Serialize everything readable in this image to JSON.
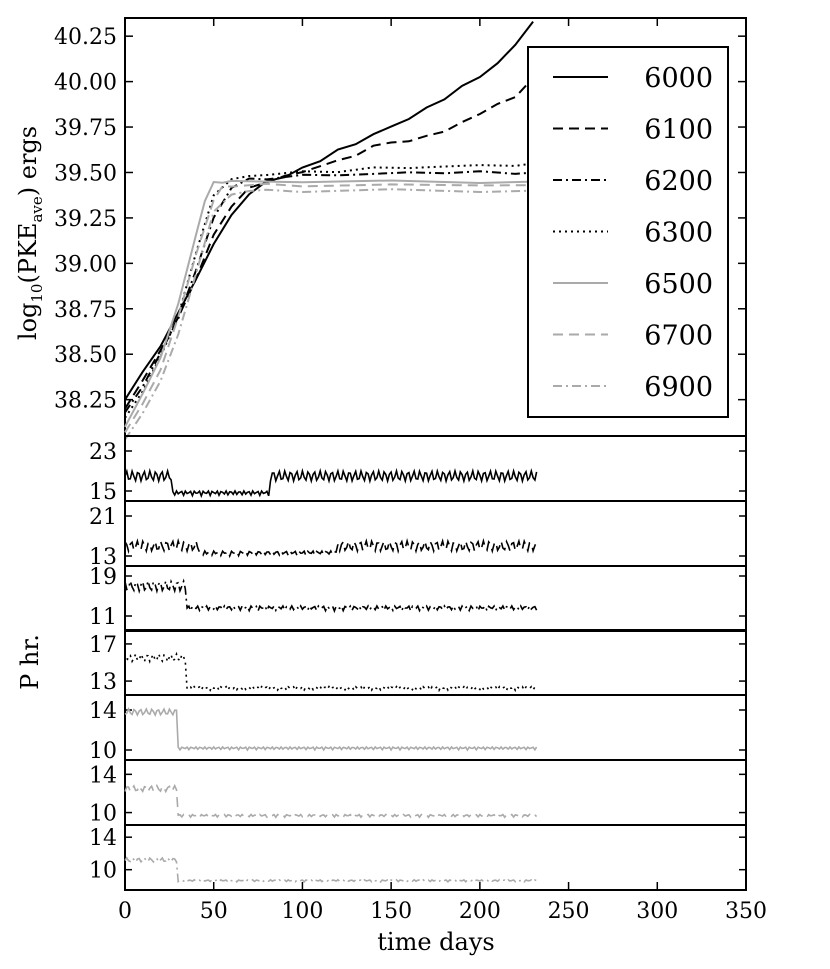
{
  "chart_data": {
    "type": "line",
    "xlabel": "time days",
    "xlim": [
      0,
      350
    ],
    "xticks": [
      "0",
      "50",
      "100",
      "150",
      "200",
      "250",
      "300",
      "350"
    ],
    "top": {
      "ylabel": "log10(PKE_ave) ergs",
      "ylabel_parts": {
        "pre": "log",
        "sub1": "10",
        "mid": "(PKE",
        "sub2": "ave",
        "post": ") ergs"
      },
      "ylim": [
        38.05,
        40.35
      ],
      "yticks": [
        "38.25",
        "38.50",
        "38.75",
        "39.00",
        "39.25",
        "39.50",
        "39.75",
        "40.00",
        "40.25"
      ],
      "legend_position": "upper-right",
      "series": [
        {
          "name": "6000",
          "color": "#000000",
          "dash": "solid",
          "x": [
            0,
            10,
            20,
            30,
            40,
            50,
            60,
            70,
            80,
            90,
            100,
            110,
            120,
            130,
            140,
            150,
            160,
            170,
            180,
            190,
            200,
            210,
            220,
            230
          ],
          "y": [
            38.25,
            38.4,
            38.55,
            38.72,
            38.92,
            39.1,
            39.27,
            39.38,
            39.45,
            39.48,
            39.52,
            39.57,
            39.62,
            39.66,
            39.71,
            39.75,
            39.8,
            39.85,
            39.91,
            39.97,
            40.03,
            40.1,
            40.2,
            40.33
          ]
        },
        {
          "name": "6100",
          "color": "#000000",
          "dash": "dashed",
          "x": [
            0,
            10,
            20,
            30,
            40,
            50,
            60,
            70,
            80,
            90,
            100,
            110,
            120,
            130,
            140,
            150,
            160,
            170,
            180,
            190,
            200,
            210,
            220,
            230
          ],
          "y": [
            38.2,
            38.36,
            38.52,
            38.7,
            38.92,
            39.15,
            39.32,
            39.41,
            39.45,
            39.48,
            39.5,
            39.54,
            39.56,
            39.6,
            39.64,
            39.67,
            39.67,
            39.7,
            39.73,
            39.77,
            39.83,
            39.87,
            39.92,
            40.02
          ]
        },
        {
          "name": "6200",
          "color": "#000000",
          "dash": "dashdot",
          "x": [
            0,
            10,
            20,
            30,
            40,
            50,
            60,
            70,
            80,
            100,
            120,
            140,
            160,
            180,
            200,
            220,
            230
          ],
          "y": [
            38.18,
            38.33,
            38.5,
            38.7,
            38.96,
            39.25,
            39.42,
            39.46,
            39.47,
            39.48,
            39.49,
            39.49,
            39.5,
            39.5,
            39.5,
            39.5,
            39.5
          ]
        },
        {
          "name": "6300",
          "color": "#000000",
          "dash": "dotted",
          "x": [
            0,
            10,
            20,
            30,
            40,
            50,
            60,
            70,
            80,
            100,
            120,
            140,
            160,
            180,
            200,
            220,
            230
          ],
          "y": [
            38.15,
            38.3,
            38.48,
            38.72,
            39.05,
            39.38,
            39.46,
            39.48,
            39.49,
            39.5,
            39.51,
            39.52,
            39.53,
            39.53,
            39.54,
            39.54,
            39.55
          ]
        },
        {
          "name": "6500",
          "color": "#aaaaaa",
          "dash": "solid",
          "x": [
            0,
            10,
            20,
            30,
            40,
            45,
            50,
            55,
            60,
            80,
            100,
            150,
            200,
            230
          ],
          "y": [
            38.1,
            38.28,
            38.48,
            38.78,
            39.15,
            39.35,
            39.44,
            39.45,
            39.45,
            39.45,
            39.45,
            39.45,
            39.45,
            39.45
          ]
        },
        {
          "name": "6700",
          "color": "#aaaaaa",
          "dash": "dashed",
          "x": [
            0,
            10,
            20,
            30,
            40,
            50,
            55,
            60,
            80,
            100,
            150,
            200,
            230
          ],
          "y": [
            38.07,
            38.22,
            38.42,
            38.7,
            39.05,
            39.35,
            39.42,
            39.43,
            39.43,
            39.43,
            39.43,
            39.43,
            39.43
          ]
        },
        {
          "name": "6900",
          "color": "#aaaaaa",
          "dash": "dashdot",
          "x": [
            0,
            10,
            20,
            30,
            40,
            50,
            60,
            70,
            80,
            100,
            150,
            200,
            230
          ],
          "y": [
            38.03,
            38.17,
            38.36,
            38.6,
            38.95,
            39.28,
            39.38,
            39.4,
            39.4,
            39.4,
            39.4,
            39.4,
            39.4
          ]
        }
      ]
    },
    "period_axis_label": "P hr.",
    "period_panels": [
      {
        "series": "6000",
        "color": "#000000",
        "dash": "solid",
        "yticks": [
          15,
          23
        ],
        "ylim": [
          13,
          26
        ],
        "base": 18,
        "high": 18,
        "low": 14,
        "drop_day": 27,
        "recover_day": 82,
        "end_day": 232,
        "amp": 1.0
      },
      {
        "series": "6100",
        "color": "#000000",
        "dash": "dashed",
        "yticks": [
          13,
          21
        ],
        "ylim": [
          11,
          24
        ],
        "base": 15,
        "high": 15,
        "low": 13,
        "drop_day": 42,
        "recover_day": 120,
        "end_day": 232,
        "amp": 1.0
      },
      {
        "series": "6200",
        "color": "#000000",
        "dash": "dashdot",
        "yticks": [
          11,
          19
        ],
        "ylim": [
          8,
          21
        ],
        "base": 12,
        "high": 17,
        "low": 12,
        "drop_day": 35,
        "recover_day": 999,
        "end_day": 232,
        "amp": 1.0
      },
      {
        "series": "6300",
        "color": "#000000",
        "dash": "dotted",
        "yticks": [
          13,
          17
        ],
        "ylim": [
          11.5,
          18.5
        ],
        "base": 12,
        "high": 15.5,
        "low": 12,
        "drop_day": 35,
        "recover_day": 999,
        "end_day": 232,
        "amp": 0.4
      },
      {
        "series": "6500",
        "color": "#aaaaaa",
        "dash": "solid",
        "yticks": [
          10,
          14
        ],
        "ylim": [
          9,
          15.5
        ],
        "base": 10,
        "high": 13.8,
        "low": 10,
        "drop_day": 30,
        "recover_day": 999,
        "end_day": 232,
        "amp": 0.3
      },
      {
        "series": "6700",
        "color": "#aaaaaa",
        "dash": "dashed",
        "yticks": [
          10,
          14
        ],
        "ylim": [
          8.7,
          15.5
        ],
        "base": 9.5,
        "high": 12.5,
        "low": 9.5,
        "drop_day": 30,
        "recover_day": 999,
        "end_day": 232,
        "amp": 0.3
      },
      {
        "series": "6900",
        "color": "#aaaaaa",
        "dash": "dashdot",
        "yticks": [
          10,
          14
        ],
        "ylim": [
          7.5,
          15.5
        ],
        "base": 8.5,
        "high": 11.2,
        "low": 8.5,
        "drop_day": 30,
        "recover_day": 999,
        "end_day": 232,
        "amp": 0.25
      }
    ]
  }
}
